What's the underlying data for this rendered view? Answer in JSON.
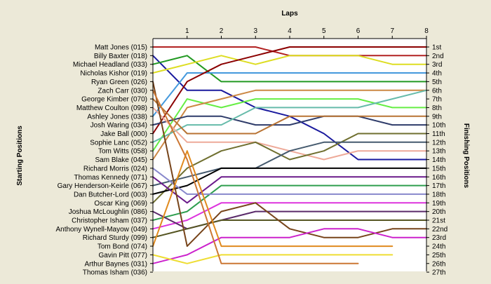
{
  "chart_data": {
    "type": "line",
    "title": "",
    "xlabel": "Laps",
    "ylabel_left": "Starting Positions",
    "ylabel_right": "Finishing Positions",
    "x_ticks": [
      1,
      2,
      3,
      4,
      5,
      6,
      7,
      8
    ],
    "xlim": [
      0,
      8
    ],
    "ylim": [
      1,
      27
    ],
    "grid": false,
    "start_labels": [
      "Matt Jones (015)",
      "Billy Baxter (018)",
      "Michael Headland (033)",
      "Nicholas Kishor (019)",
      "Ryan Green (026)",
      "Zach Carr (030)",
      "George Kimber (070)",
      "Matthew Coulton (098)",
      "Ashley Jones (038)",
      "Josh Waring (034)",
      "Jake Ball (000)",
      "Sophie Lanc (052)",
      "Tom Witts (058)",
      "Sam Blake (045)",
      "Richard Morris (024)",
      "Thomas Kennedy (071)",
      "Gary Henderson-Keirle (067)",
      "Dan Butcher-Lord (003)",
      "Oscar King (069)",
      "Joshua McLoughlin (086)",
      "Christopher Isham (037)",
      "Anthony Wynell-Mayow (049)",
      "Richard Sturdy (099)",
      "Tom Bond (074)",
      "Gavin Pitt (077)",
      "Arthur Baynes (031)",
      "Thomas Isham (036)"
    ],
    "finish_labels": [
      "1st",
      "2nd",
      "3rd",
      "4th",
      "5th",
      "6th",
      "7th",
      "8th",
      "9th",
      "10th",
      "11th",
      "12th",
      "13th",
      "14th",
      "15th",
      "16th",
      "17th",
      "18th",
      "19th",
      "20th",
      "21st",
      "22nd",
      "23rd",
      "24th",
      "25th",
      "26th",
      "27th"
    ],
    "series": [
      {
        "color": "#b22222",
        "values": [
          1,
          1,
          1,
          1,
          2,
          2,
          2,
          2,
          2
        ]
      },
      {
        "color": "#1a1a9e",
        "values": [
          2,
          6,
          6,
          8,
          9,
          11,
          14,
          14,
          14
        ]
      },
      {
        "color": "#229922",
        "values": [
          3,
          2,
          5,
          5,
          5,
          5,
          5,
          5,
          5
        ]
      },
      {
        "color": "#dddd22",
        "values": [
          4,
          3,
          2,
          3,
          2,
          2,
          2,
          3,
          3
        ]
      },
      {
        "color": "#4499dd",
        "values": [
          9,
          4,
          4,
          4,
          4,
          4,
          4,
          4,
          4
        ]
      },
      {
        "color": "#8b0000",
        "values": [
          11,
          5,
          3,
          2,
          1,
          1,
          1,
          1,
          1
        ]
      },
      {
        "color": "#66ee44",
        "values": [
          13,
          7,
          8,
          7,
          7,
          7,
          7,
          8,
          8
        ]
      },
      {
        "color": "#cc8844",
        "values": [
          14,
          8,
          7,
          6,
          6,
          6,
          6,
          6,
          6
        ]
      },
      {
        "color": "#2f3c6a",
        "values": [
          10,
          9,
          9,
          10,
          10,
          9,
          9,
          10,
          10
        ]
      },
      {
        "color": "#66bbaa",
        "values": [
          12,
          10,
          10,
          8,
          8,
          8,
          8,
          7,
          6
        ]
      },
      {
        "color": "#b87333",
        "values": [
          7,
          11,
          11,
          11,
          9,
          9,
          9,
          9,
          9
        ]
      },
      {
        "color": "#eeaa99",
        "values": [
          8,
          12,
          12,
          12,
          13,
          14,
          13,
          13,
          13
        ]
      },
      {
        "color": "#6f6f2f",
        "values": [
          19,
          15,
          13,
          12,
          14,
          13,
          11,
          11,
          11
        ]
      },
      {
        "color": "#455a6e",
        "values": [
          17,
          16,
          15,
          15,
          13,
          12,
          12,
          12,
          12
        ]
      },
      {
        "color": "#000000",
        "values": [
          18,
          17,
          15,
          15,
          15,
          15,
          15,
          15,
          15
        ]
      },
      {
        "color": "#6a1a8a",
        "values": [
          16,
          19,
          16,
          16,
          16,
          16,
          16,
          16,
          16
        ]
      },
      {
        "color": "#2e9e4e",
        "values": [
          21,
          20,
          17,
          17,
          17,
          17,
          17,
          17,
          17
        ]
      },
      {
        "color": "#8888cc",
        "values": [
          15,
          18,
          18,
          18,
          18,
          18,
          18,
          18,
          18
        ]
      },
      {
        "color": "#dd33dd",
        "values": [
          22,
          21,
          19,
          19,
          19,
          19,
          19,
          19,
          19
        ]
      },
      {
        "color": "#5a2a6a",
        "values": [
          20,
          22,
          21,
          20,
          20,
          20,
          20,
          20,
          20
        ]
      },
      {
        "color": "#555522",
        "values": [
          23,
          22,
          21,
          21,
          21,
          21,
          21,
          21,
          21
        ]
      },
      {
        "color": "#77441a",
        "values": [
          5,
          24,
          20,
          19,
          22,
          23,
          23,
          22,
          22
        ]
      },
      {
        "color": "#cc22cc",
        "values": [
          26,
          25,
          23,
          23,
          23,
          22,
          22,
          23,
          23
        ]
      },
      {
        "color": "#e08a1e",
        "values": [
          24,
          13,
          24,
          24,
          24,
          24,
          24,
          24
        ]
      },
      {
        "color": "#eedd33",
        "values": [
          25,
          26,
          25,
          25,
          25,
          25,
          25,
          25
        ]
      },
      {
        "color": "#cc7733",
        "values": [
          6,
          14,
          26,
          26,
          26,
          26,
          26
        ]
      },
      {
        "color": "#999999",
        "values": [
          27
        ]
      }
    ]
  }
}
